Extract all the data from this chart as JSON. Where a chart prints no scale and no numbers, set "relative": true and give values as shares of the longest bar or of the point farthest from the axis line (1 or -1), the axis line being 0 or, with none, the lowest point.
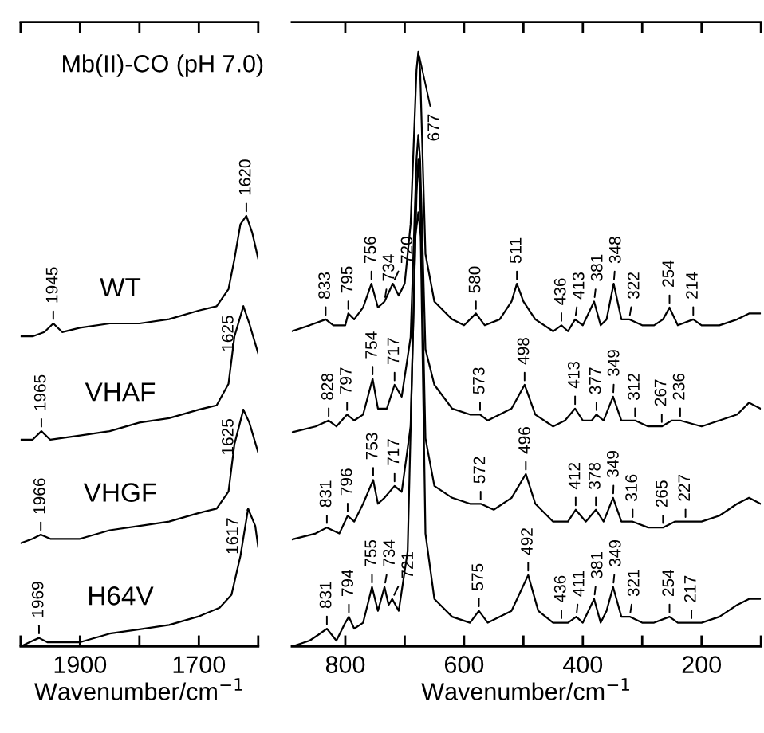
{
  "chart_data": [
    {
      "type": "line",
      "relative": true,
      "title": "Mb(II)-CO (pH 7.0)",
      "xlabel": "Wavenumber/cm$^{−1}$",
      "xlim": [
        2000,
        1600
      ],
      "xticks": [
        {
          "value": 2000,
          "label": null
        },
        1900,
        {
          "value": 1800,
          "label": null
        },
        1700,
        {
          "value": 1600,
          "label": null
        }
      ],
      "tick_labels": "x",
      "series": [
        {
          "name": "WT",
          "color": "#000000",
          "x": [
            2000,
            1980,
            1960,
            1945,
            1930,
            1900,
            1850,
            1800,
            1750,
            1700,
            1670,
            1650,
            1640,
            1630,
            1620,
            1610,
            1600
          ],
          "values": [
            0.72,
            0.72,
            0.73,
            0.75,
            0.73,
            0.74,
            0.75,
            0.75,
            0.76,
            0.78,
            0.79,
            0.83,
            0.9,
            0.98,
            1,
            0.96,
            0.9
          ]
        },
        {
          "name": "VHAF",
          "color": "#000000",
          "x": [
            2000,
            1980,
            1965,
            1950,
            1900,
            1850,
            1800,
            1750,
            1700,
            1670,
            1650,
            1640,
            1625,
            1615,
            1600
          ],
          "values": [
            0.48,
            0.48,
            0.5,
            0.48,
            0.49,
            0.5,
            0.52,
            0.53,
            0.55,
            0.56,
            0.61,
            0.72,
            0.79,
            0.75,
            0.68
          ]
        },
        {
          "name": "VHGF",
          "color": "#000000",
          "x": [
            2000,
            1980,
            1966,
            1950,
            1900,
            1850,
            1800,
            1750,
            1700,
            1670,
            1650,
            1640,
            1625,
            1615,
            1600
          ],
          "values": [
            0.24,
            0.25,
            0.26,
            0.25,
            0.25,
            0.27,
            0.28,
            0.29,
            0.31,
            0.32,
            0.36,
            0.47,
            0.55,
            0.52,
            0.45
          ]
        },
        {
          "name": "H64V",
          "color": "#000000",
          "x": [
            2000,
            1985,
            1969,
            1955,
            1900,
            1850,
            1800,
            1750,
            1700,
            1665,
            1645,
            1630,
            1617,
            1605,
            1600
          ],
          "values": [
            0,
            0.01,
            0.02,
            0.01,
            0.01,
            0.03,
            0.04,
            0.05,
            0.07,
            0.09,
            0.12,
            0.21,
            0.32,
            0.28,
            0.23
          ]
        }
      ],
      "annotations": [
        {
          "text": "1945",
          "x": 1945,
          "y": 0.75
        },
        {
          "text": "1620",
          "x": 1620,
          "y": 1
        },
        {
          "text": "1965",
          "x": 1965,
          "y": 0.5
        },
        {
          "text": "1625",
          "x": 1625,
          "y": 0.79
        },
        {
          "text": "1966",
          "x": 1966,
          "y": 0.26
        },
        {
          "text": "1625",
          "x": 1625,
          "y": 0.55
        },
        {
          "text": "1969",
          "x": 1969,
          "y": 0.02
        },
        {
          "text": "1617",
          "x": 1617,
          "y": 0.32
        }
      ]
    },
    {
      "type": "line",
      "relative": true,
      "xlabel": "Wavenumber/cm$^{−1}$",
      "xlim": [
        890,
        100
      ],
      "xticks": [
        800,
        {
          "value": 700,
          "label": null
        },
        600,
        {
          "value": 500,
          "label": null
        },
        400,
        {
          "value": 300,
          "label": null
        },
        200,
        {
          "value": 100,
          "label": null
        }
      ],
      "tick_labels": "x",
      "series": [
        {
          "color": "#000000",
          "x": [
            890,
            860,
            833,
            820,
            800,
            795,
            785,
            770,
            756,
            745,
            734,
            720,
            710,
            700,
            690,
            680,
            677,
            674,
            665,
            650,
            620,
            600,
            580,
            565,
            540,
            520,
            511,
            500,
            480,
            450,
            436,
            425,
            413,
            400,
            381,
            370,
            360,
            348,
            335,
            322,
            300,
            280,
            265,
            254,
            240,
            214,
            200,
            170,
            140,
            120,
            101
          ],
          "values": [
            0.53,
            0.54,
            0.55,
            0.54,
            0.54,
            0.56,
            0.55,
            0.57,
            0.61,
            0.57,
            0.58,
            0.61,
            0.59,
            0.61,
            0.71,
            0.97,
            1,
            0.97,
            0.66,
            0.58,
            0.55,
            0.54,
            0.56,
            0.54,
            0.55,
            0.58,
            0.61,
            0.58,
            0.55,
            0.53,
            0.54,
            0.53,
            0.55,
            0.54,
            0.58,
            0.54,
            0.55,
            0.61,
            0.55,
            0.55,
            0.54,
            0.54,
            0.55,
            0.57,
            0.54,
            0.55,
            0.54,
            0.54,
            0.55,
            0.56,
            0.56
          ]
        },
        {
          "color": "#000000",
          "x": [
            890,
            850,
            828,
            815,
            797,
            785,
            770,
            754,
            745,
            730,
            717,
            705,
            690,
            680,
            677,
            674,
            665,
            650,
            620,
            590,
            573,
            560,
            520,
            498,
            480,
            450,
            430,
            413,
            400,
            385,
            377,
            365,
            349,
            335,
            312,
            290,
            267,
            250,
            236,
            200,
            170,
            140,
            120,
            101
          ],
          "values": [
            0.36,
            0.37,
            0.38,
            0.37,
            0.39,
            0.38,
            0.39,
            0.45,
            0.4,
            0.4,
            0.44,
            0.42,
            0.52,
            0.82,
            0.86,
            0.82,
            0.5,
            0.44,
            0.4,
            0.39,
            0.39,
            0.38,
            0.4,
            0.44,
            0.39,
            0.37,
            0.38,
            0.4,
            0.38,
            0.38,
            0.39,
            0.38,
            0.42,
            0.38,
            0.38,
            0.37,
            0.37,
            0.38,
            0.38,
            0.37,
            0.38,
            0.39,
            0.41,
            0.4
          ]
        },
        {
          "color": "#000000",
          "x": [
            890,
            850,
            831,
            810,
            796,
            785,
            770,
            753,
            745,
            734,
            717,
            705,
            690,
            680,
            677,
            674,
            665,
            650,
            620,
            590,
            572,
            550,
            520,
            496,
            480,
            450,
            425,
            412,
            395,
            378,
            365,
            349,
            335,
            316,
            290,
            265,
            245,
            227,
            200,
            170,
            140,
            120,
            101
          ],
          "values": [
            0.18,
            0.19,
            0.2,
            0.19,
            0.22,
            0.21,
            0.24,
            0.28,
            0.24,
            0.25,
            0.27,
            0.26,
            0.37,
            0.76,
            0.82,
            0.76,
            0.35,
            0.27,
            0.25,
            0.24,
            0.24,
            0.23,
            0.25,
            0.29,
            0.24,
            0.21,
            0.21,
            0.23,
            0.21,
            0.23,
            0.21,
            0.25,
            0.21,
            0.21,
            0.2,
            0.2,
            0.21,
            0.21,
            0.21,
            0.22,
            0.24,
            0.25,
            0.24
          ]
        },
        {
          "color": "#000000",
          "x": [
            890,
            860,
            845,
            831,
            815,
            800,
            794,
            785,
            770,
            755,
            745,
            734,
            727,
            721,
            710,
            695,
            682,
            677,
            673,
            665,
            650,
            620,
            590,
            575,
            560,
            520,
            492,
            475,
            450,
            436,
            425,
            411,
            400,
            381,
            370,
            360,
            349,
            335,
            321,
            300,
            280,
            254,
            240,
            217,
            200,
            170,
            140,
            120,
            101
          ],
          "values": [
            0,
            0.01,
            0.02,
            0.03,
            0.01,
            0.04,
            0.05,
            0.03,
            0.04,
            0.1,
            0.06,
            0.1,
            0.07,
            0.08,
            0.06,
            0.16,
            0.69,
            0.73,
            0.69,
            0.19,
            0.08,
            0.05,
            0.04,
            0.06,
            0.04,
            0.06,
            0.12,
            0.06,
            0.04,
            0.04,
            0.04,
            0.05,
            0.04,
            0.08,
            0.04,
            0.06,
            0.1,
            0.05,
            0.05,
            0.04,
            0.04,
            0.05,
            0.04,
            0.04,
            0.04,
            0.05,
            0.07,
            0.08,
            0.08
          ]
        }
      ],
      "annotations": [
        {
          "text": "833",
          "x": 833,
          "y": 0.55
        },
        {
          "text": "795",
          "x": 795,
          "y": 0.56
        },
        {
          "text": "756",
          "x": 756,
          "y": 0.61
        },
        {
          "text": "734",
          "x": 734,
          "y": 0.58
        },
        {
          "text": "720",
          "x": 720,
          "y": 0.61
        },
        {
          "text": "677",
          "x": 677,
          "y": 1
        },
        {
          "text": "580",
          "x": 580,
          "y": 0.56
        },
        {
          "text": "511",
          "x": 511,
          "y": 0.61
        },
        {
          "text": "436",
          "x": 436,
          "y": 0.54
        },
        {
          "text": "413",
          "x": 413,
          "y": 0.55
        },
        {
          "text": "381",
          "x": 381,
          "y": 0.58
        },
        {
          "text": "348",
          "x": 348,
          "y": 0.61
        },
        {
          "text": "322",
          "x": 322,
          "y": 0.55
        },
        {
          "text": "254",
          "x": 254,
          "y": 0.57
        },
        {
          "text": "214",
          "x": 214,
          "y": 0.55
        },
        {
          "text": "828",
          "x": 828,
          "y": 0.38
        },
        {
          "text": "797",
          "x": 797,
          "y": 0.39
        },
        {
          "text": "754",
          "x": 754,
          "y": 0.45
        },
        {
          "text": "717",
          "x": 717,
          "y": 0.44
        },
        {
          "text": "573",
          "x": 573,
          "y": 0.39
        },
        {
          "text": "498",
          "x": 498,
          "y": 0.44
        },
        {
          "text": "413",
          "x": 413,
          "y": 0.4
        },
        {
          "text": "377",
          "x": 377,
          "y": 0.39
        },
        {
          "text": "349",
          "x": 349,
          "y": 0.42
        },
        {
          "text": "312",
          "x": 312,
          "y": 0.38
        },
        {
          "text": "267",
          "x": 267,
          "y": 0.37
        },
        {
          "text": "236",
          "x": 236,
          "y": 0.38
        },
        {
          "text": "831",
          "x": 831,
          "y": 0.2
        },
        {
          "text": "796",
          "x": 796,
          "y": 0.22
        },
        {
          "text": "753",
          "x": 753,
          "y": 0.28
        },
        {
          "text": "717",
          "x": 717,
          "y": 0.27
        },
        {
          "text": "572",
          "x": 572,
          "y": 0.24
        },
        {
          "text": "496",
          "x": 496,
          "y": 0.29
        },
        {
          "text": "412",
          "x": 412,
          "y": 0.23
        },
        {
          "text": "378",
          "x": 378,
          "y": 0.23
        },
        {
          "text": "349",
          "x": 349,
          "y": 0.25
        },
        {
          "text": "316",
          "x": 316,
          "y": 0.21
        },
        {
          "text": "265",
          "x": 265,
          "y": 0.2
        },
        {
          "text": "227",
          "x": 227,
          "y": 0.21
        },
        {
          "text": "831",
          "x": 831,
          "y": 0.03
        },
        {
          "text": "794",
          "x": 794,
          "y": 0.05
        },
        {
          "text": "755",
          "x": 755,
          "y": 0.1
        },
        {
          "text": "734",
          "x": 734,
          "y": 0.1
        },
        {
          "text": "721",
          "x": 721,
          "y": 0.08
        },
        {
          "text": "575",
          "x": 575,
          "y": 0.06
        },
        {
          "text": "492",
          "x": 492,
          "y": 0.12
        },
        {
          "text": "436",
          "x": 436,
          "y": 0.04
        },
        {
          "text": "411",
          "x": 411,
          "y": 0.05
        },
        {
          "text": "381",
          "x": 381,
          "y": 0.08
        },
        {
          "text": "349",
          "x": 349,
          "y": 0.1
        },
        {
          "text": "321",
          "x": 321,
          "y": 0.05
        },
        {
          "text": "254",
          "x": 254,
          "y": 0.05
        },
        {
          "text": "217",
          "x": 217,
          "y": 0.04
        }
      ]
    }
  ]
}
